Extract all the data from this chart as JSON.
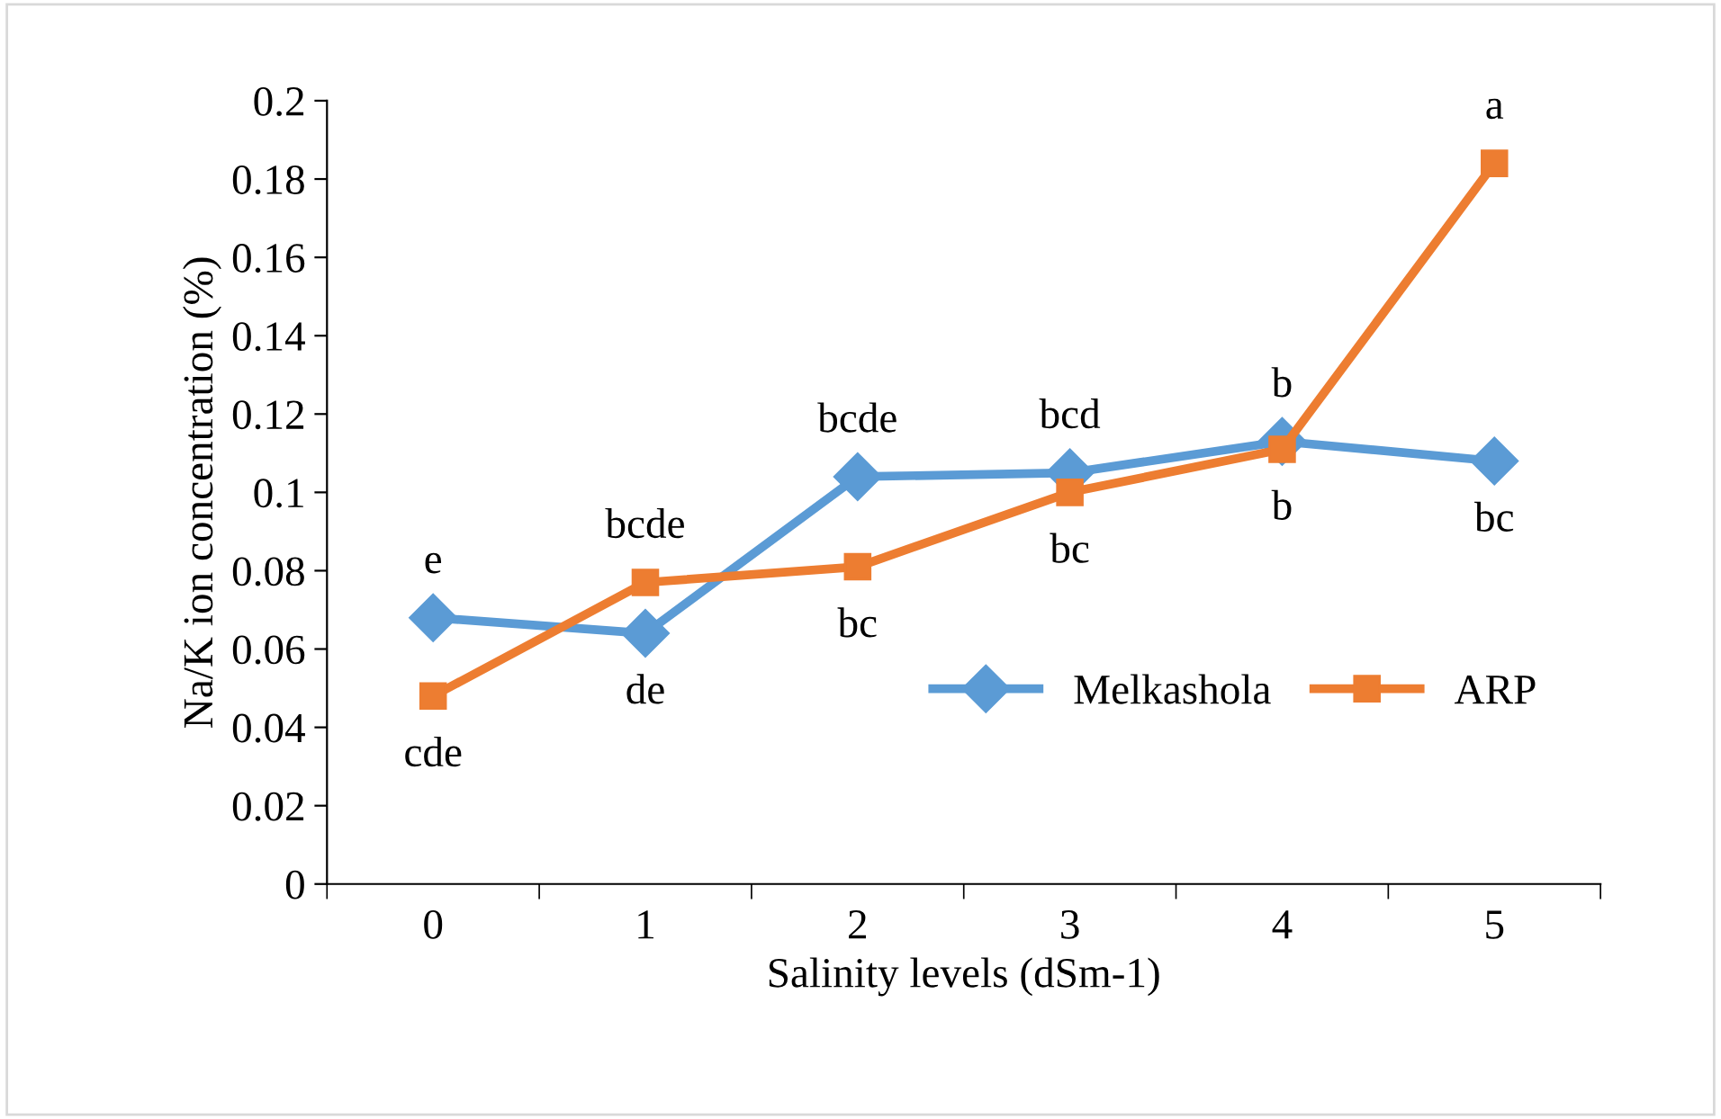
{
  "chart_data": {
    "type": "line",
    "xlabel": "Salinity levels (dSm-1)",
    "ylabel": "Na/K ion concentration (%)",
    "categories": [
      "0",
      "1",
      "2",
      "3",
      "4",
      "5"
    ],
    "series": [
      {
        "name": "Melkashola",
        "color": "#5b9bd5",
        "marker": "diamond",
        "values": [
          0.068,
          0.064,
          0.104,
          0.105,
          0.113,
          0.108
        ]
      },
      {
        "name": "ARP",
        "color": "#ed7d31",
        "marker": "square",
        "values": [
          0.048,
          0.077,
          0.081,
          0.1,
          0.111,
          0.184
        ]
      }
    ],
    "ylim": [
      0,
      0.2
    ],
    "yticks": [
      0,
      0.02,
      0.04,
      0.06,
      0.08,
      0.1,
      0.12,
      0.14,
      0.16,
      0.18,
      0.2
    ],
    "grid": false,
    "legend": "bottom right",
    "line_style": "solid",
    "annotations": [
      {
        "text": "e",
        "x": "0",
        "y": 0.068
      },
      {
        "text": "cde",
        "x": "0",
        "y": 0.048
      },
      {
        "text": "bcde",
        "x": "1",
        "y": 0.077
      },
      {
        "text": "de",
        "x": "1",
        "y": 0.064
      },
      {
        "text": "bcde",
        "x": "2",
        "y": 0.104
      },
      {
        "text": "bc",
        "x": "2",
        "y": 0.081
      },
      {
        "text": "bcd",
        "x": "3",
        "y": 0.105
      },
      {
        "text": "bc",
        "x": "3",
        "y": 0.1
      },
      {
        "text": "b",
        "x": "4",
        "y": 0.113
      },
      {
        "text": "b",
        "x": "4",
        "y": 0.111
      },
      {
        "text": "a",
        "x": "5",
        "y": 0.184
      },
      {
        "text": "bc",
        "x": "5",
        "y": 0.108
      }
    ]
  }
}
